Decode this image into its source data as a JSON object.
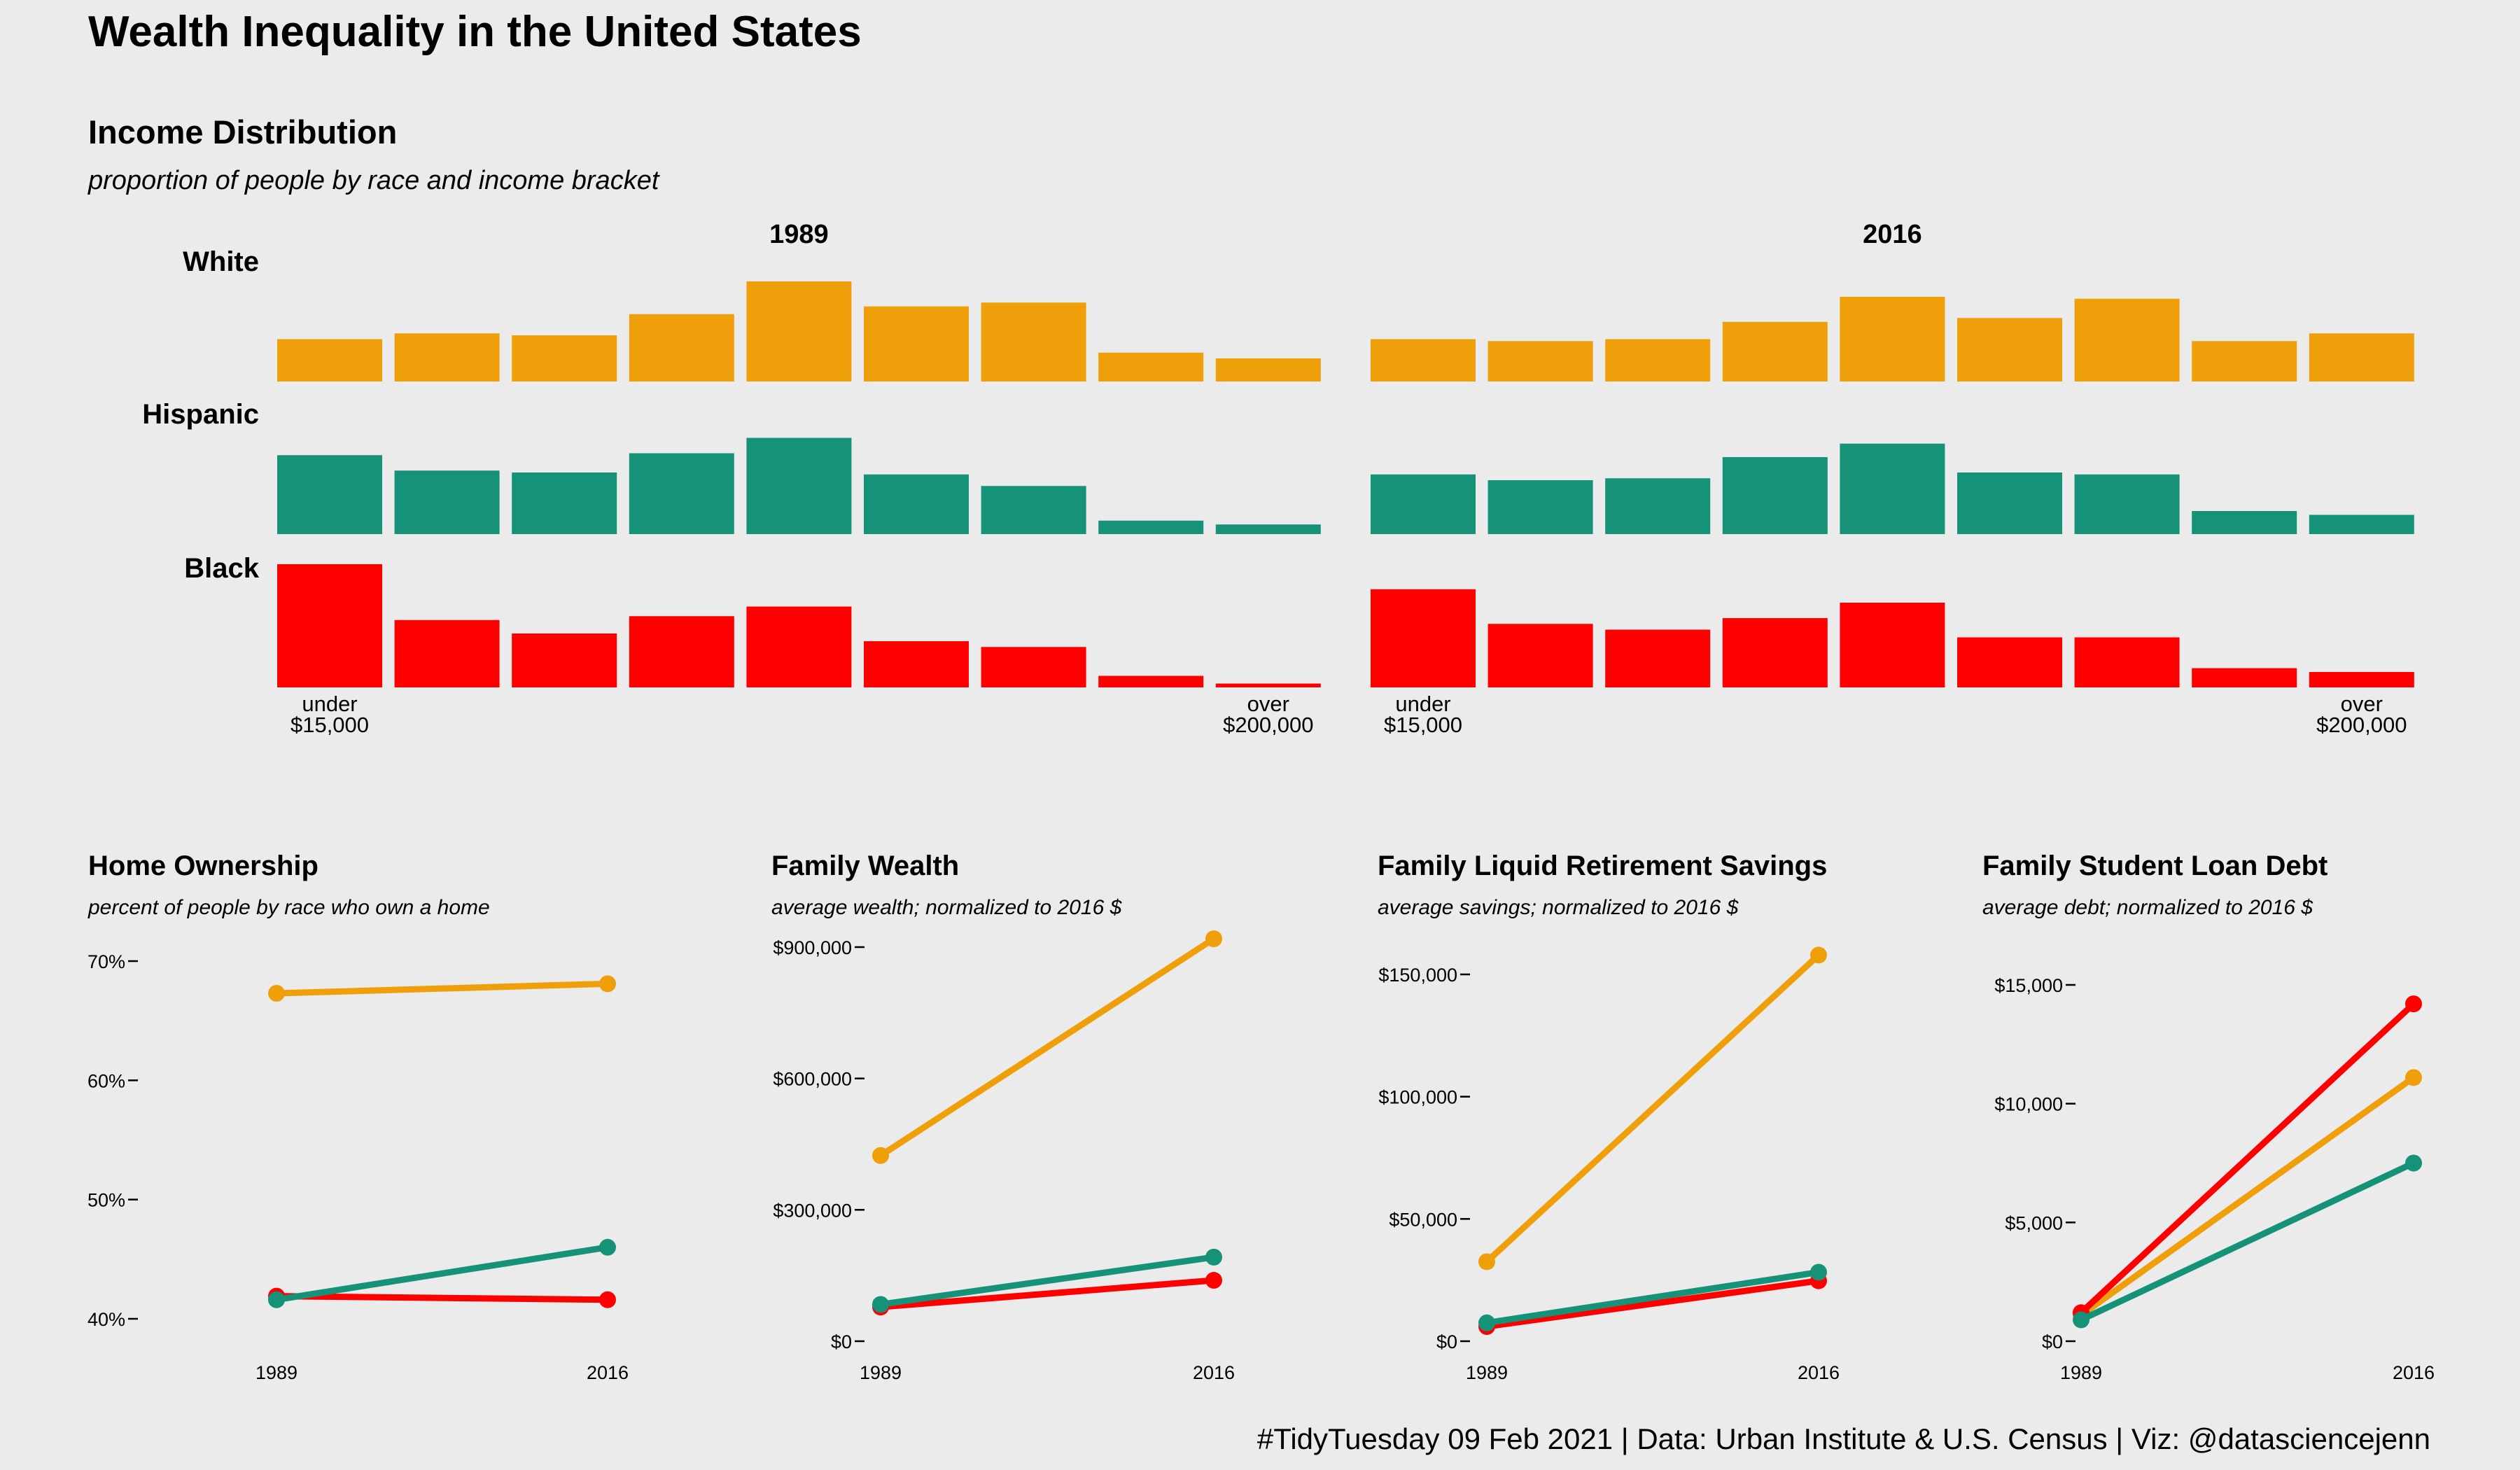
{
  "title": "Wealth Inequality in the United States",
  "caption": "#TidyTuesday 09 Feb 2021 | Data: Urban Institute & U.S. Census | Viz: @datasciencejenn",
  "colors": {
    "White": "#ee9f0a",
    "Hispanic": "#159278",
    "Black": "#ff0000",
    "background": "#ebebeb"
  },
  "income": {
    "title": "Income Distribution",
    "subtitle": "proportion of people by race and income bracket",
    "years": [
      "1989",
      "2016"
    ],
    "races": [
      "White",
      "Hispanic",
      "Black"
    ],
    "bracket_label_first": [
      "under",
      "$15,000"
    ],
    "bracket_label_last": [
      "over",
      "$200,000"
    ]
  },
  "chart_data": [
    {
      "type": "bar",
      "title": "Income Distribution",
      "subtitle": "proportion of people by race and income bracket",
      "note": "relative heights estimated from bars; 9 income brackets, unlabeled interior brackets",
      "categories": [
        "under $15,000",
        "",
        "",
        "",
        "",
        "",
        "",
        "",
        "over $200,000"
      ],
      "panels": [
        {
          "year": "1989",
          "series": [
            {
              "name": "White",
              "values": [
                11,
                12.5,
                12,
                17.5,
                26,
                19.5,
                20.5,
                7.5,
                6
              ]
            },
            {
              "name": "Hispanic",
              "values": [
                20.5,
                16.5,
                16,
                21,
                25,
                15.5,
                12.5,
                3.5,
                2.5
              ]
            },
            {
              "name": "Black",
              "values": [
                32,
                17.5,
                14,
                18.5,
                21,
                12,
                10.5,
                3,
                1
              ]
            }
          ]
        },
        {
          "year": "2016",
          "series": [
            {
              "name": "White",
              "values": [
                11,
                10.5,
                11,
                15.5,
                22,
                16.5,
                21.5,
                10.5,
                12.5
              ]
            },
            {
              "name": "Hispanic",
              "values": [
                15.5,
                14,
                14.5,
                20,
                23.5,
                16,
                15.5,
                6,
                5
              ]
            },
            {
              "name": "Black",
              "values": [
                25.5,
                16.5,
                15,
                18,
                22,
                13,
                13,
                5,
                4
              ]
            }
          ]
        }
      ]
    },
    {
      "type": "line",
      "title": "Home Ownership",
      "subtitle": "percent of people by race who own a home",
      "x": [
        "1989",
        "2016"
      ],
      "ylim": [
        40,
        70
      ],
      "yticks": [
        40,
        50,
        60,
        70
      ],
      "ytick_labels": [
        "40%",
        "50%",
        "60%",
        "70%"
      ],
      "series": [
        {
          "name": "White",
          "values": [
            67.3,
            68.1
          ]
        },
        {
          "name": "Black",
          "values": [
            41.9,
            41.6
          ]
        },
        {
          "name": "Hispanic",
          "values": [
            41.6,
            46.0
          ]
        }
      ]
    },
    {
      "type": "line",
      "title": "Family Wealth",
      "subtitle": "average wealth; normalized to 2016 $",
      "x": [
        "1989",
        "2016"
      ],
      "ylim": [
        0,
        900000
      ],
      "yticks": [
        0,
        300000,
        600000,
        900000
      ],
      "ytick_labels": [
        "$0",
        "$300,000",
        "$600,000",
        "$900,000"
      ],
      "series": [
        {
          "name": "White",
          "values": [
            424000,
            919000
          ]
        },
        {
          "name": "Black",
          "values": [
            78000,
            139000
          ]
        },
        {
          "name": "Hispanic",
          "values": [
            84000,
            192000
          ]
        }
      ]
    },
    {
      "type": "line",
      "title": "Family Liquid Retirement Savings",
      "subtitle": "average savings; normalized to 2016 $",
      "x": [
        "1989",
        "2016"
      ],
      "ylim": [
        0,
        150000
      ],
      "yticks": [
        0,
        50000,
        100000,
        150000
      ],
      "ytick_labels": [
        "$0",
        "$50,000",
        "$100,000",
        "$150,000"
      ],
      "series": [
        {
          "name": "White",
          "values": [
            32500,
            157900
          ]
        },
        {
          "name": "Black",
          "values": [
            6000,
            24700
          ]
        },
        {
          "name": "Hispanic",
          "values": [
            7500,
            28200
          ]
        }
      ]
    },
    {
      "type": "line",
      "title": "Family Student Loan Debt",
      "subtitle": "average debt; normalized to 2016 $",
      "x": [
        "1989",
        "2016"
      ],
      "ylim": [
        0,
        15000
      ],
      "yticks": [
        0,
        5000,
        10000,
        15000
      ],
      "ytick_labels": [
        "$0",
        "$5,000",
        "$10,000",
        "$15,000"
      ],
      "series": [
        {
          "name": "White",
          "values": [
            1100,
            11100
          ]
        },
        {
          "name": "Black",
          "values": [
            1200,
            14200
          ]
        },
        {
          "name": "Hispanic",
          "values": [
            900,
            7500
          ]
        }
      ]
    }
  ]
}
